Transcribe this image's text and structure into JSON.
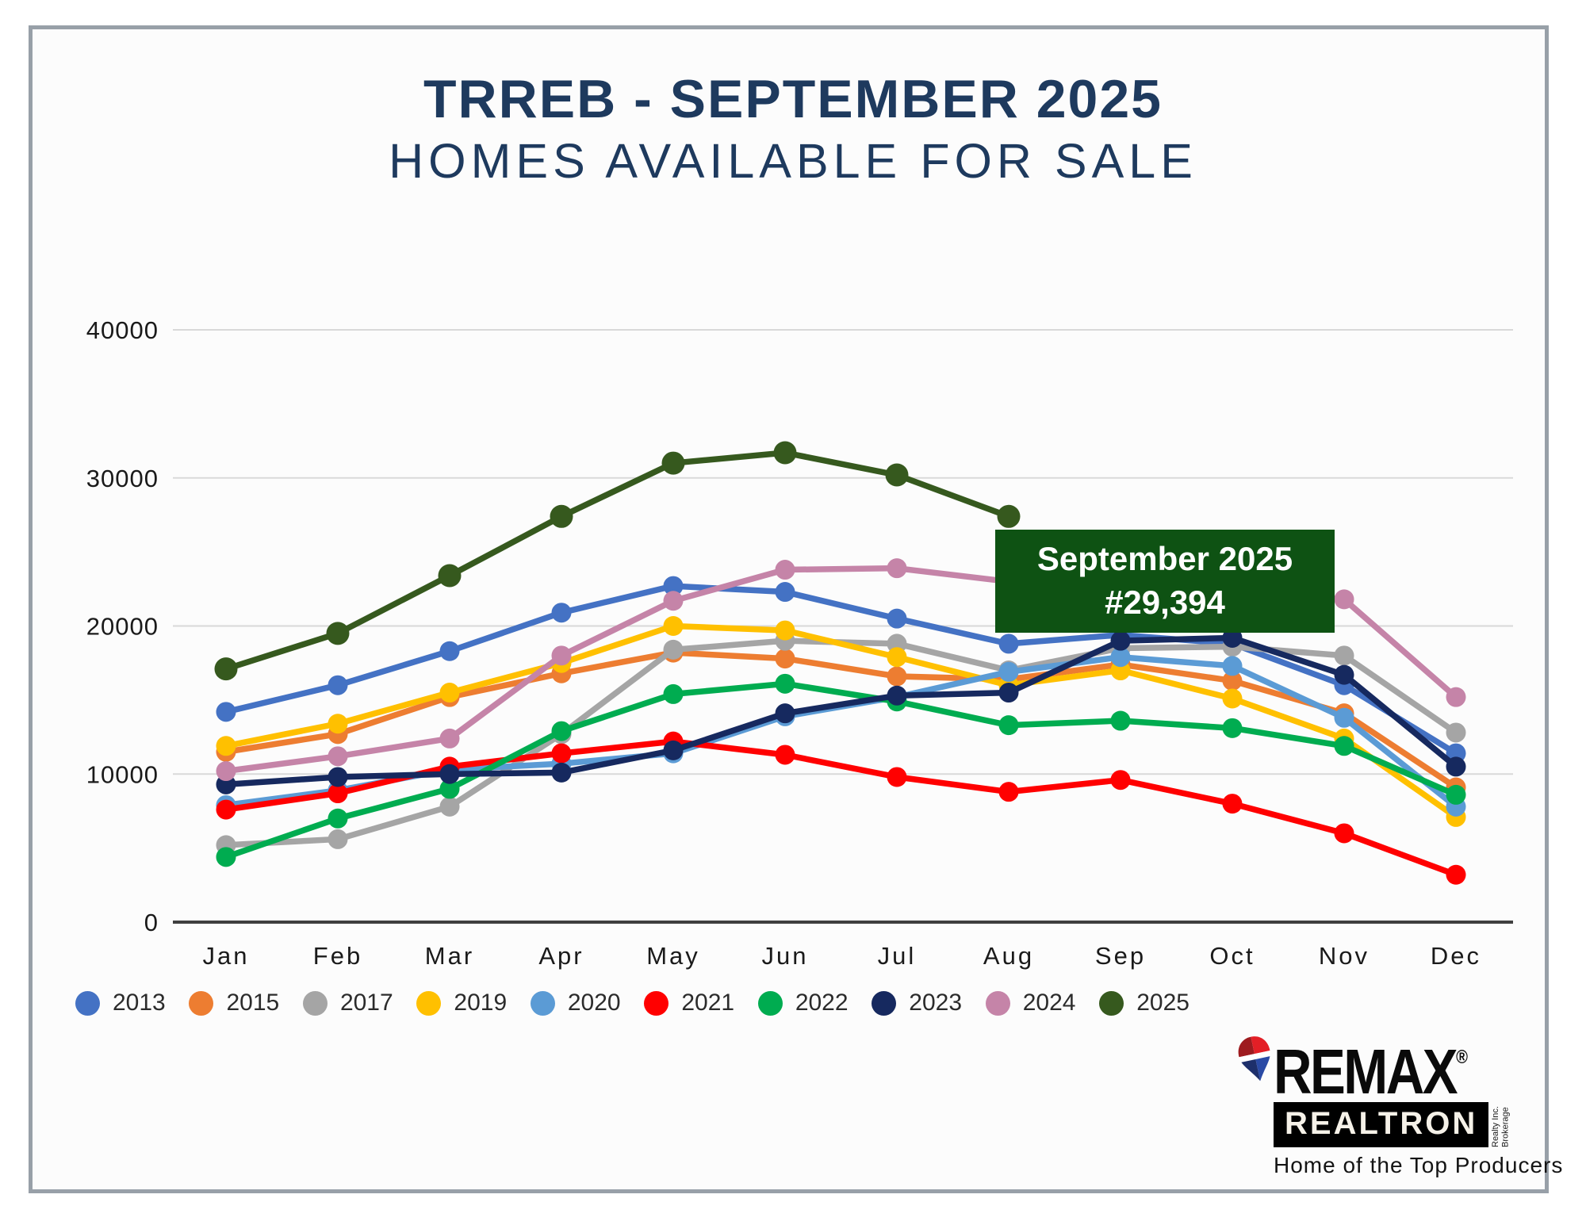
{
  "title": {
    "line1": "TRREB - SEPTEMBER 2025",
    "line2": "HOMES AVAILABLE FOR SALE",
    "color": "#1E3A5E"
  },
  "callout": {
    "line1": "September 2025",
    "line2": "#29,394",
    "bg_color": "#0E5213",
    "text_color": "#FFFFFF"
  },
  "chart_data": {
    "type": "line",
    "title": "TRREB - September 2025 Homes Available for Sale",
    "categories": [
      "Jan",
      "Feb",
      "Mar",
      "Apr",
      "May",
      "Jun",
      "Jul",
      "Aug",
      "Sep",
      "Oct",
      "Nov",
      "Dec"
    ],
    "series": [
      {
        "name": "2013",
        "color": "#4472C4",
        "values": [
          14200,
          16000,
          18300,
          20900,
          22700,
          22300,
          20500,
          18800,
          19400,
          18800,
          16000,
          11400
        ]
      },
      {
        "name": "2015",
        "color": "#ED7D31",
        "values": [
          11500,
          12700,
          15200,
          16800,
          18200,
          17800,
          16600,
          16400,
          17400,
          16300,
          14100,
          9100
        ]
      },
      {
        "name": "2017",
        "color": "#A5A5A5",
        "values": [
          5200,
          5600,
          7800,
          12700,
          18400,
          19000,
          18800,
          17000,
          18500,
          18600,
          18000,
          12800
        ]
      },
      {
        "name": "2019",
        "color": "#FFC000",
        "values": [
          11900,
          13400,
          15500,
          17500,
          20000,
          19700,
          17900,
          16000,
          17000,
          15100,
          12400,
          7100
        ]
      },
      {
        "name": "2020",
        "color": "#5B9BD5",
        "values": [
          7900,
          8900,
          10300,
          10700,
          11400,
          13900,
          15200,
          16900,
          17900,
          17300,
          13800,
          7800
        ]
      },
      {
        "name": "2021",
        "color": "#FF0000",
        "values": [
          7600,
          8700,
          10500,
          11400,
          12200,
          11300,
          9800,
          8800,
          9600,
          8000,
          6000,
          3200
        ]
      },
      {
        "name": "2022",
        "color": "#00AC50",
        "values": [
          4400,
          7000,
          9000,
          12900,
          15400,
          16100,
          14900,
          13300,
          13600,
          13100,
          11900,
          8600
        ]
      },
      {
        "name": "2023",
        "color": "#16295F",
        "values": [
          9300,
          9800,
          10000,
          10100,
          11600,
          14100,
          15300,
          15500,
          19000,
          19200,
          16700,
          10500
        ]
      },
      {
        "name": "2024",
        "color": "#C584A8",
        "values": [
          10200,
          11200,
          12400,
          18000,
          21700,
          23800,
          23900,
          23000,
          22600,
          22300,
          21800,
          15200
        ]
      },
      {
        "name": "2025",
        "color": "#36591E",
        "values": [
          17100,
          19500,
          23400,
          27400,
          31000,
          31700,
          30200,
          27400,
          null,
          null,
          null,
          null
        ]
      }
    ],
    "y_ticks": [
      0,
      10000,
      20000,
      30000,
      40000
    ],
    "ylim": [
      0,
      40000
    ],
    "xlabel": "",
    "ylabel": "",
    "grid": true,
    "legend_position": "bottom",
    "grid_color": "#D9D9D9",
    "axis_color": "#3F3F3F",
    "tick_label_color": "#1A1A1A"
  },
  "logo": {
    "brand": "REMAX",
    "registered": "®",
    "banner": "REALTRON",
    "side_line1": "Realty Inc.",
    "side_line2": "Brokerage",
    "tagline": "Home of the Top Producers",
    "balloon_red": "#E31F26",
    "balloon_dark_red": "#9E1B1F",
    "balloon_blue": "#2A4AA5",
    "balloon_dark_blue": "#1D2F6B"
  }
}
